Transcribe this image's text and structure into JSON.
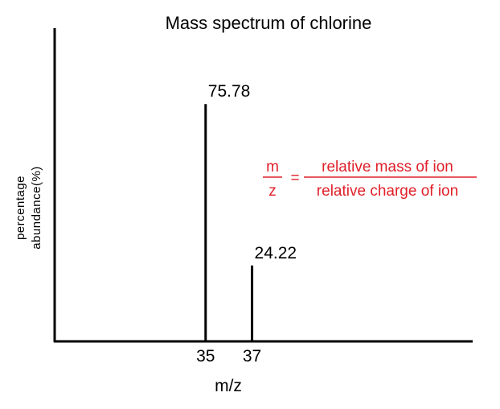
{
  "chart_data": {
    "type": "bar",
    "title": "Mass  spectrum of chlorine",
    "xlabel": "m/z",
    "ylabel_lines": [
      "percentage",
      "abundance(%)"
    ],
    "x": [
      35,
      37
    ],
    "values": [
      75.78,
      24.22
    ],
    "data_labels": [
      "75.78",
      "24.22"
    ],
    "tick_labels": [
      "35",
      "37"
    ],
    "xlim": [
      28.5,
      46.5
    ],
    "ylim": [
      0,
      100
    ],
    "grid": false,
    "annotation": {
      "numerator_left": "m",
      "denominator_left": "z",
      "equals": "=",
      "numerator_right": "relative mass of ion",
      "denominator_right": "relative charge of ion",
      "color": "#e0202a"
    }
  }
}
